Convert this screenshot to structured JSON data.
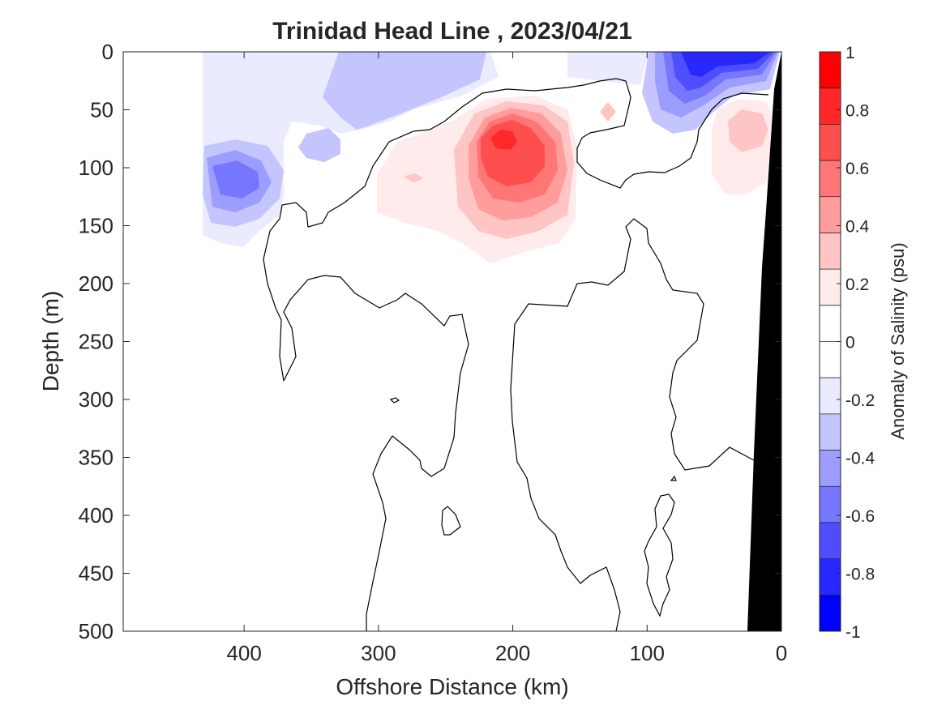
{
  "chart_data": {
    "type": "contour",
    "title": "Trinidad Head Line , 2023/04/21",
    "xlabel": "Offshore Distance (km)",
    "ylabel": "Depth (m)",
    "colorbar_label": "Anomaly of Salinity (psu)",
    "xlim": [
      490,
      0
    ],
    "ylim": [
      0,
      500
    ],
    "x_ticks": [
      400,
      300,
      200,
      100,
      0
    ],
    "y_ticks": [
      0,
      50,
      100,
      150,
      200,
      250,
      300,
      350,
      400,
      450,
      500
    ],
    "colorbar_ticks": [
      1,
      0.8,
      0.6,
      0.4,
      0.2,
      0,
      -0.2,
      -0.4,
      -0.6,
      -0.8,
      -1
    ],
    "colorbar_levels": [
      "#ff0000",
      "#ff2727",
      "#ff4e4e",
      "#ff7676",
      "#ff9d9d",
      "#ffc4c4",
      "#ffebeb",
      "#ffffff",
      "#ffffff",
      "#ebebff",
      "#c4c4ff",
      "#9d9dff",
      "#7676ff",
      "#4e4eff",
      "#2727ff",
      "#0000ff"
    ],
    "colors": {
      "positive": "#ff0000",
      "negative": "#0000ff",
      "land": "#000000"
    },
    "anomaly_features": [
      {
        "sign": "negative",
        "x_center": 400,
        "depth_center": 110,
        "peak": -0.5
      },
      {
        "sign": "negative",
        "x_center": 330,
        "depth_center": 30,
        "peak": -0.3
      },
      {
        "sign": "negative",
        "x_center": 60,
        "depth_center": 25,
        "peak": -0.9
      },
      {
        "sign": "positive",
        "x_center": 210,
        "depth_center": 85,
        "peak": 0.75
      },
      {
        "sign": "positive",
        "x_center": 280,
        "depth_center": 110,
        "peak": 0.15
      },
      {
        "sign": "positive",
        "x_center": 30,
        "depth_center": 80,
        "peak": 0.3
      }
    ]
  }
}
